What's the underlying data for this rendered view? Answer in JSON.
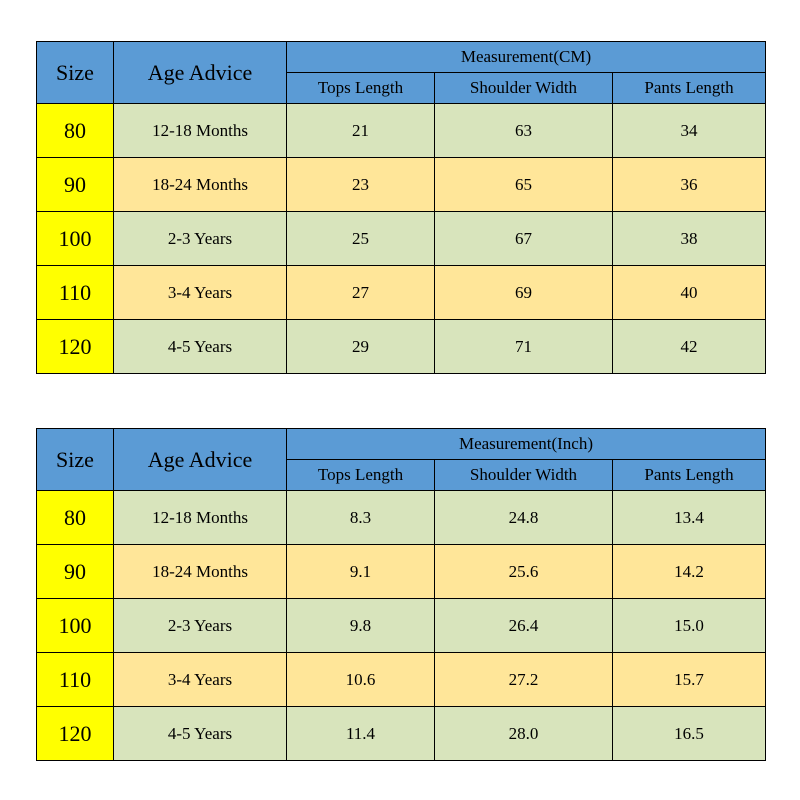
{
  "tables": [
    {
      "headers": {
        "size": "Size",
        "age": "Age Advice",
        "measurement": "Measurement(CM)",
        "columns": [
          "Tops Length",
          "Shoulder Width",
          "Pants Length"
        ]
      },
      "rows": [
        [
          "80",
          "12-18 Months",
          "21",
          "63",
          "34"
        ],
        [
          "90",
          "18-24 Months",
          "23",
          "65",
          "36"
        ],
        [
          "100",
          "2-3 Years",
          "25",
          "67",
          "38"
        ],
        [
          "110",
          "3-4 Years",
          "27",
          "69",
          "40"
        ],
        [
          "120",
          "4-5 Years",
          "29",
          "71",
          "42"
        ]
      ]
    },
    {
      "headers": {
        "size": "Size",
        "age": "Age Advice",
        "measurement": "Measurement(Inch)",
        "columns": [
          "Tops Length",
          "Shoulder Width",
          "Pants Length"
        ]
      },
      "rows": [
        [
          "80",
          "12-18 Months",
          "8.3",
          "24.8",
          "13.4"
        ],
        [
          "90",
          "18-24 Months",
          "9.1",
          "25.6",
          "14.2"
        ],
        [
          "100",
          "2-3 Years",
          "9.8",
          "26.4",
          "15.0"
        ],
        [
          "110",
          "3-4 Years",
          "10.6",
          "27.2",
          "15.7"
        ],
        [
          "120",
          "4-5 Years",
          "11.4",
          "28.0",
          "16.5"
        ]
      ]
    }
  ]
}
